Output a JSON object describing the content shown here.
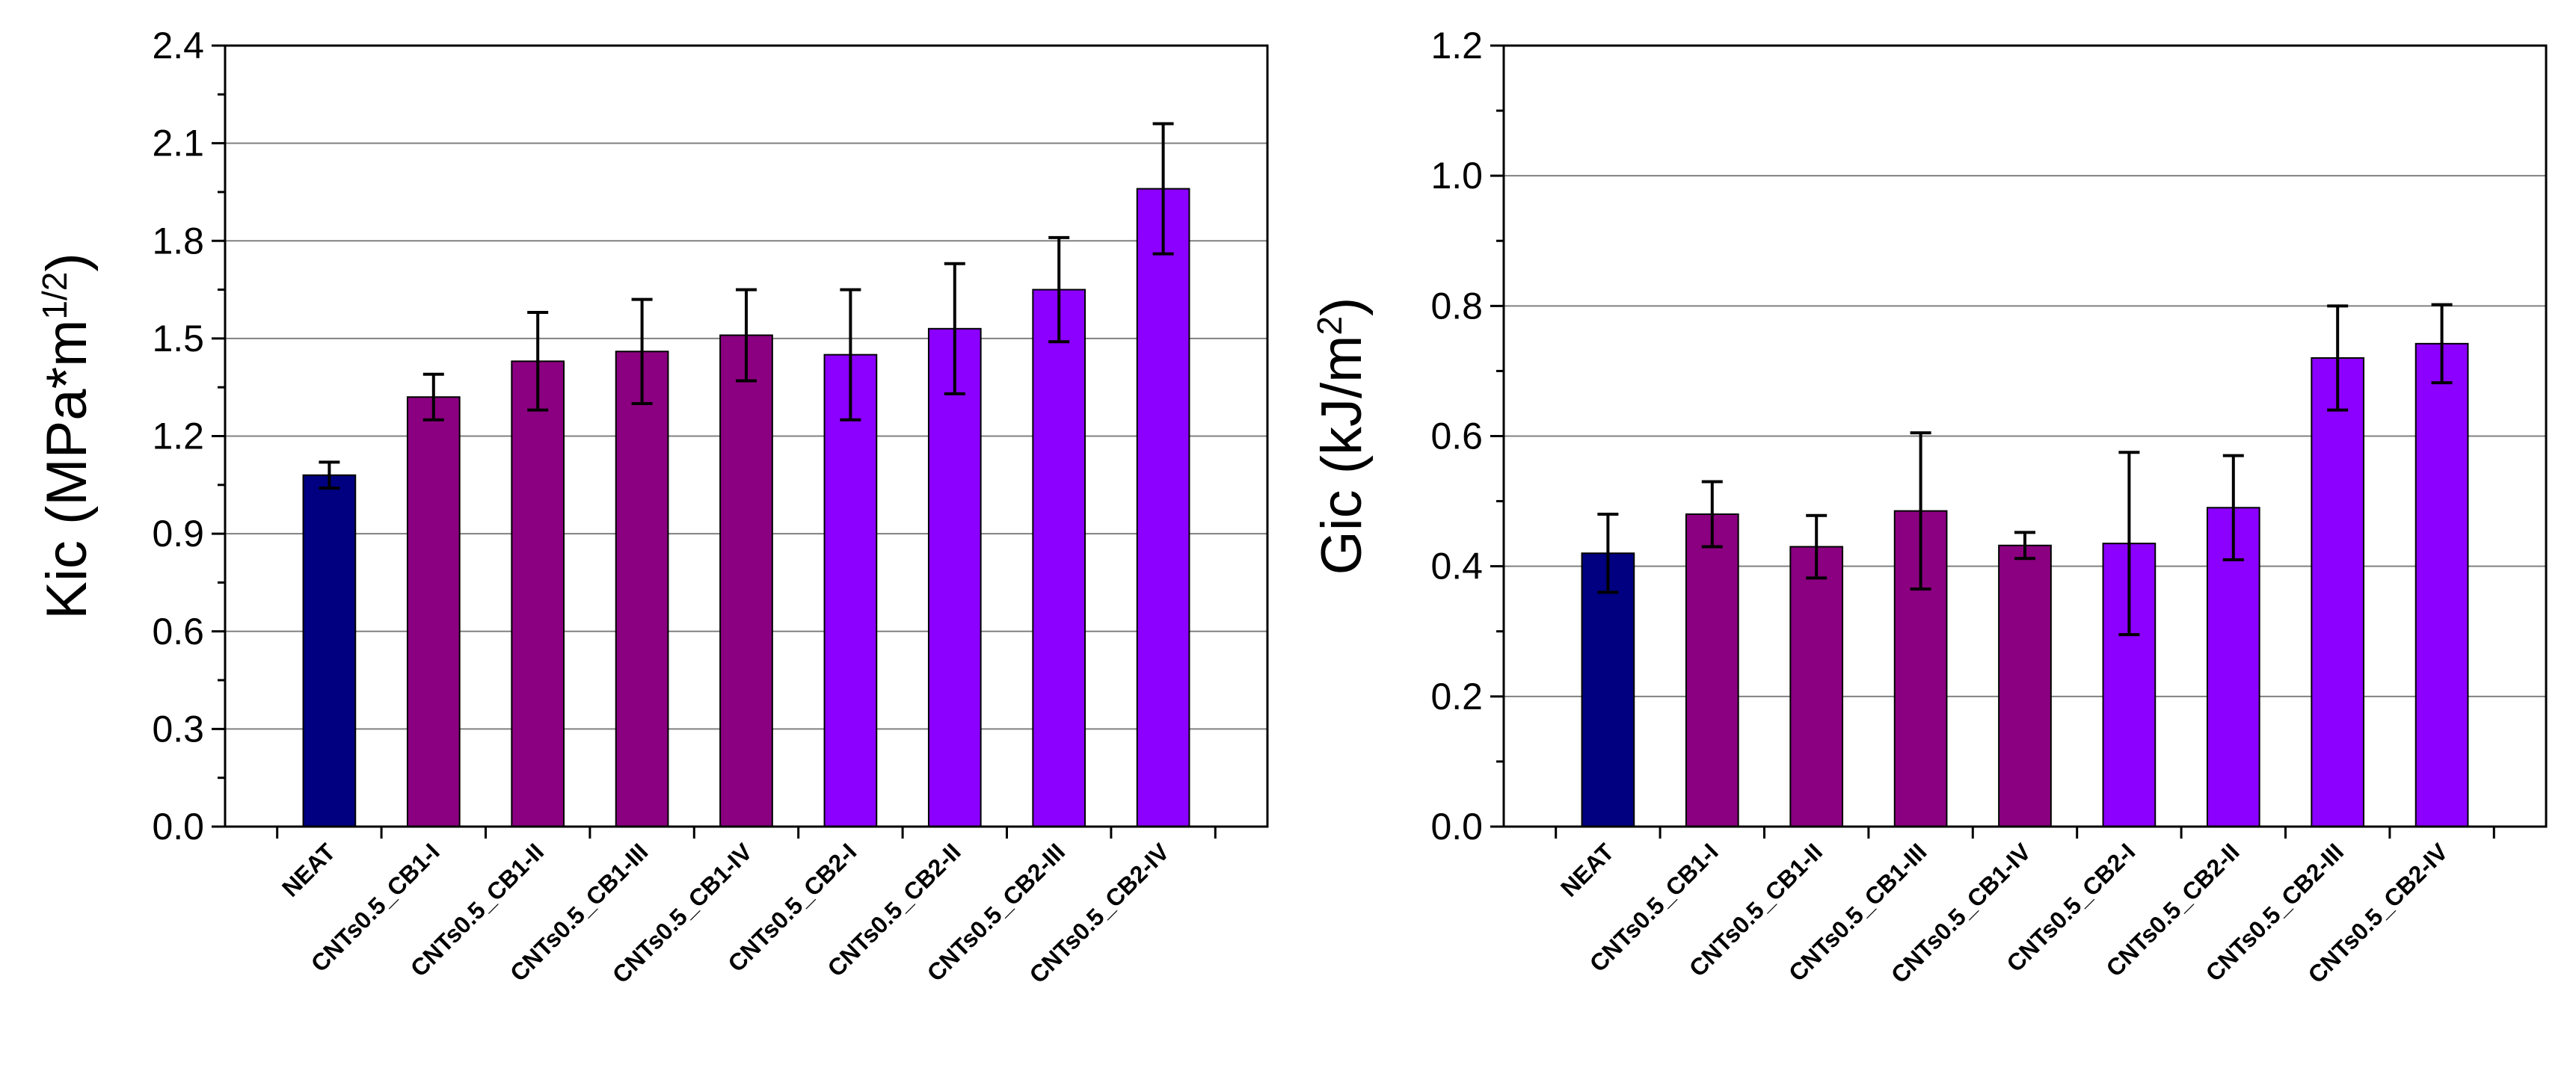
{
  "chart_data": [
    {
      "type": "bar",
      "title": "",
      "xlabel": "",
      "ylabel": {
        "text": "Kic (MPa*m",
        "superscript": "1/2",
        "suffix": ")"
      },
      "ylim": [
        0,
        2.4
      ],
      "yticks": [
        "0.0",
        "0.3",
        "0.6",
        "0.9",
        "1.2",
        "1.5",
        "1.8",
        "2.1",
        "2.4"
      ],
      "grid": true,
      "categories": [
        "NEAT",
        "CNTs0.5_CB1-I",
        "CNTs0.5_CB1-II",
        "CNTs0.5_CB1-III",
        "CNTs0.5_CB1-IV",
        "CNTs0.5_CB2-I",
        "CNTs0.5_CB2-II",
        "CNTs0.5_CB2-III",
        "CNTs0.5_CB2-IV"
      ],
      "values": [
        1.08,
        1.32,
        1.43,
        1.46,
        1.51,
        1.45,
        1.53,
        1.65,
        1.96
      ],
      "errors": [
        0.04,
        0.07,
        0.15,
        0.16,
        0.14,
        0.2,
        0.2,
        0.16,
        0.2
      ],
      "colors": [
        "#000080",
        "#8b0080",
        "#8b0080",
        "#8b0080",
        "#8b0080",
        "#8b00ff",
        "#8b00ff",
        "#8b00ff",
        "#8b00ff"
      ]
    },
    {
      "type": "bar",
      "title": "",
      "xlabel": "",
      "ylabel": {
        "text": "Gic  (kJ/m",
        "superscript": "2",
        "suffix": ")"
      },
      "ylim": [
        0,
        1.2
      ],
      "yticks": [
        "0.0",
        "0.2",
        "0.4",
        "0.6",
        "0.8",
        "1.0",
        "1.2"
      ],
      "grid": true,
      "categories": [
        "NEAT",
        "CNTs0.5_CB1-I",
        "CNTs0.5_CB1-II",
        "CNTs0.5_CB1-III",
        "CNTs0.5_CB1-IV",
        "CNTs0.5_CB2-I",
        "CNTs0.5_CB2-II",
        "CNTs0.5_CB2-III",
        "CNTs0.5_CB2-IV"
      ],
      "values": [
        0.42,
        0.48,
        0.43,
        0.485,
        0.432,
        0.435,
        0.49,
        0.72,
        0.742
      ],
      "errors": [
        0.06,
        0.05,
        0.048,
        0.12,
        0.02,
        0.14,
        0.08,
        0.08,
        0.06
      ],
      "colors": [
        "#000080",
        "#8b0080",
        "#8b0080",
        "#8b0080",
        "#8b0080",
        "#8b00ff",
        "#8b00ff",
        "#8b00ff",
        "#8b00ff"
      ]
    }
  ]
}
